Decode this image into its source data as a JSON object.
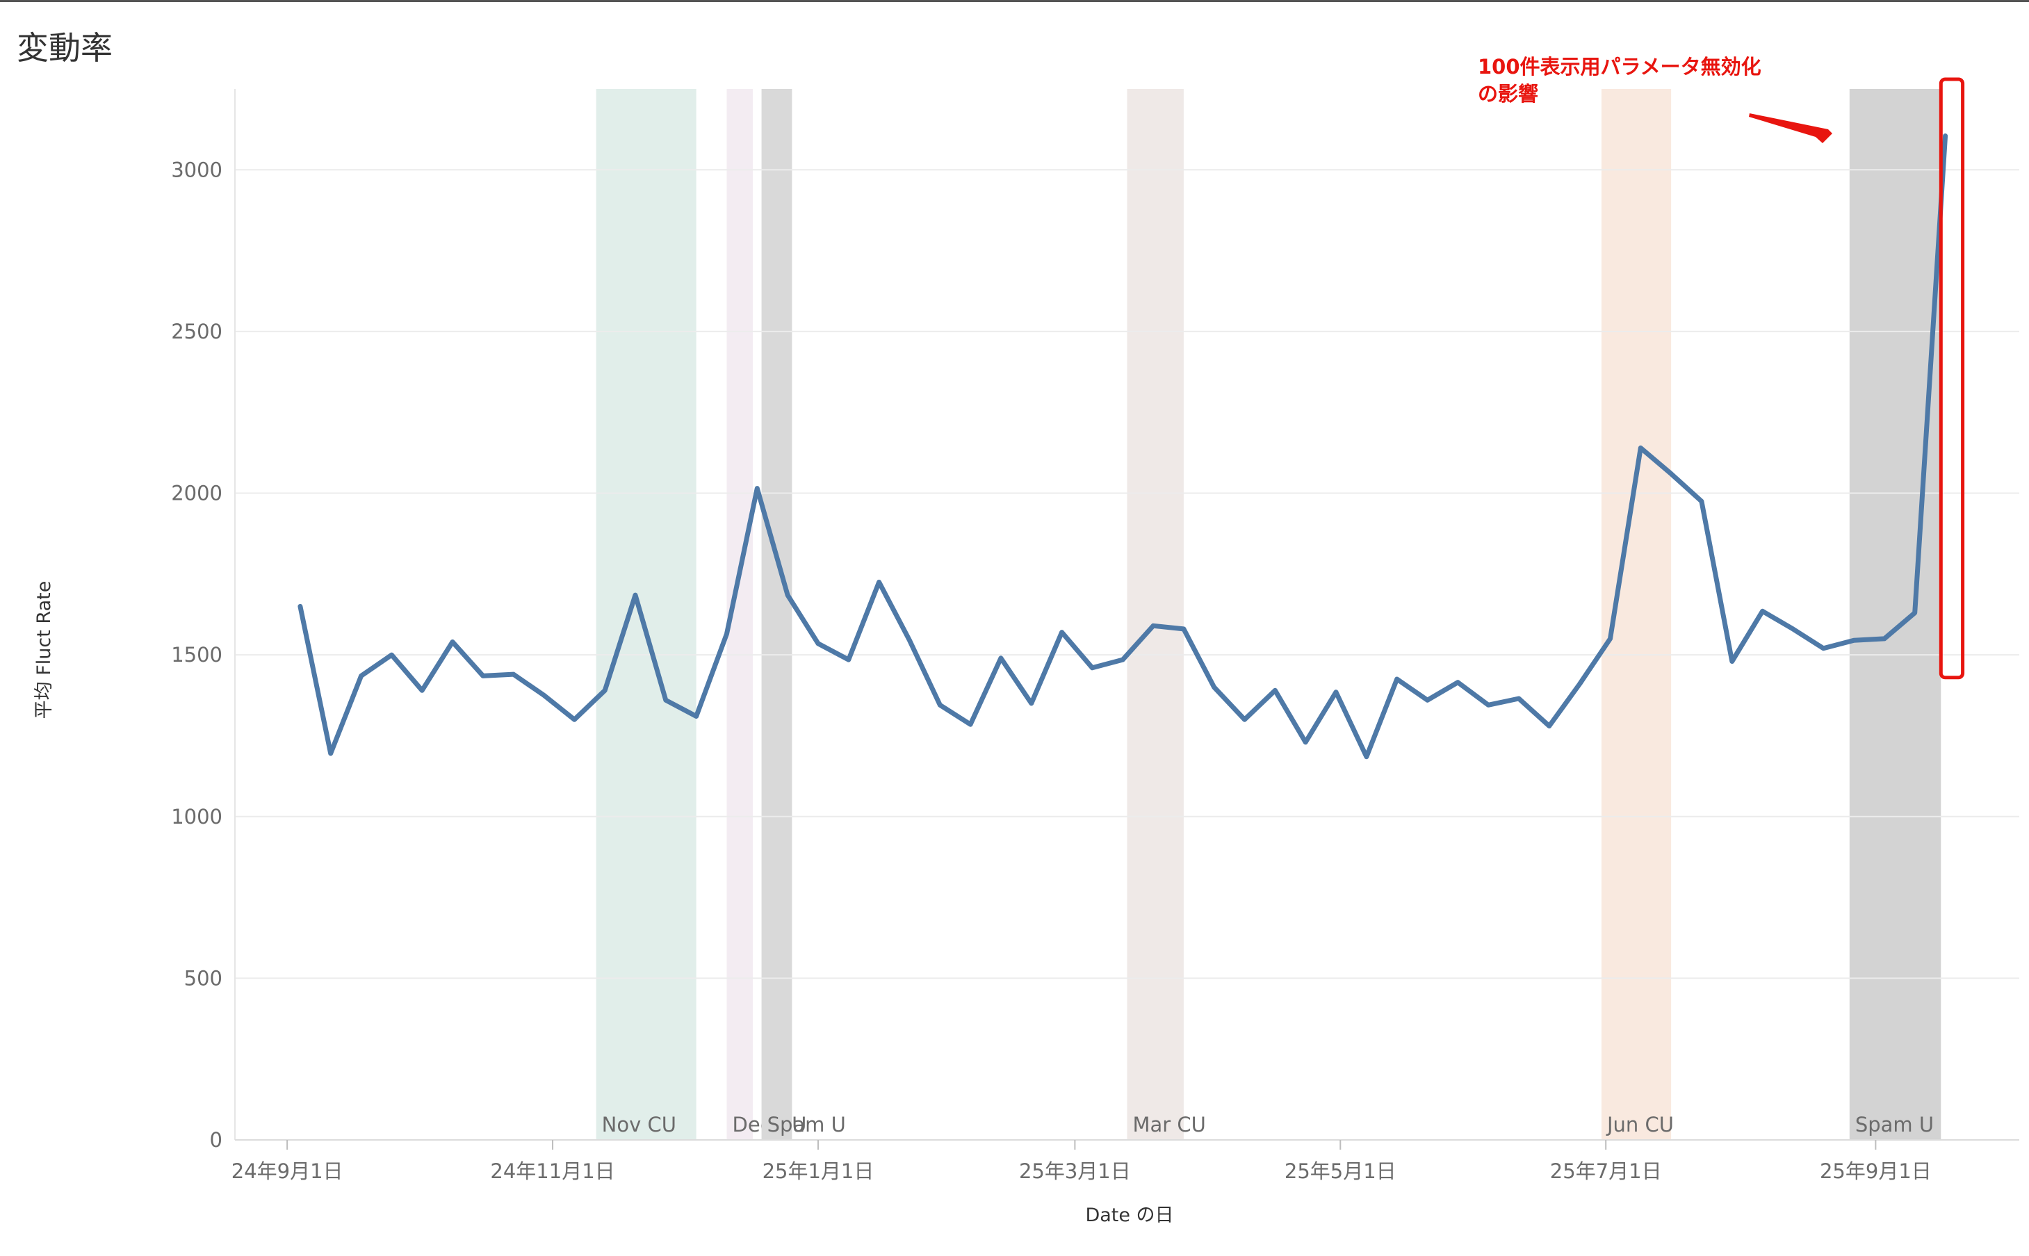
{
  "chart_data": {
    "type": "line",
    "title": "変動率",
    "xlabel": "Date の日",
    "ylabel": "平均 Fluct Rate",
    "ylim": [
      0,
      3250
    ],
    "yticks": [
      0,
      500,
      1000,
      1500,
      2000,
      2500,
      3000
    ],
    "ytick_labels": [
      "0",
      "500",
      "1000",
      "1500",
      "2000",
      "2500",
      "3000"
    ],
    "xlim": [
      "2024-08-20",
      "2025-10-04"
    ],
    "xticks": [
      {
        "date": "2024-09-01",
        "label": "24年9月1日"
      },
      {
        "date": "2024-11-01",
        "label": "24年11月1日"
      },
      {
        "date": "2025-01-01",
        "label": "25年1月1日"
      },
      {
        "date": "2025-03-01",
        "label": "25年3月1日"
      },
      {
        "date": "2025-05-01",
        "label": "25年5月1日"
      },
      {
        "date": "2025-07-01",
        "label": "25年7月1日"
      },
      {
        "date": "2025-09-01",
        "label": "25年9月1日"
      }
    ],
    "grid": true,
    "line_color": "#4e79a7",
    "bands": [
      {
        "label": "Nov CU",
        "start": "2024-11-11",
        "end": "2024-12-04",
        "color": "#e1eeea"
      },
      {
        "label": "Dec CU",
        "start": "2024-12-11",
        "end": "2024-12-17",
        "color": "#f3ecf2"
      },
      {
        "label": "Spam U",
        "start": "2024-12-19",
        "end": "2024-12-26",
        "color": "#d9d9d9"
      },
      {
        "label": "Mar CU",
        "start": "2025-03-13",
        "end": "2025-03-26",
        "color": "#efe9e7"
      },
      {
        "label": "Jun CU",
        "start": "2025-06-30",
        "end": "2025-07-16",
        "color": "#f9e9df"
      },
      {
        "label": "Spam U",
        "start": "2025-08-26",
        "end": "2025-09-16",
        "color": "#d3d3d3"
      }
    ],
    "series": [
      {
        "x": [
          "2024-09-04",
          "2024-09-11",
          "2024-09-18",
          "2024-09-25",
          "2024-10-02",
          "2024-10-09",
          "2024-10-16",
          "2024-10-23",
          "2024-10-30",
          "2024-11-06",
          "2024-11-13",
          "2024-11-20",
          "2024-11-27",
          "2024-12-04",
          "2024-12-11",
          "2024-12-18",
          "2024-12-25",
          "2025-01-01",
          "2025-01-08",
          "2025-01-15",
          "2025-01-22",
          "2025-01-29",
          "2025-02-05",
          "2025-02-12",
          "2025-02-19",
          "2025-02-26",
          "2025-03-05",
          "2025-03-12",
          "2025-03-19",
          "2025-03-26",
          "2025-04-02",
          "2025-04-09",
          "2025-04-16",
          "2025-04-23",
          "2025-04-30",
          "2025-05-07",
          "2025-05-14",
          "2025-05-21",
          "2025-05-28",
          "2025-06-04",
          "2025-06-11",
          "2025-06-18",
          "2025-06-25",
          "2025-07-02",
          "2025-07-09",
          "2025-07-16",
          "2025-07-23",
          "2025-07-30",
          "2025-08-06",
          "2025-08-13",
          "2025-08-20",
          "2025-08-27",
          "2025-09-03",
          "2025-09-10",
          "2025-09-17"
        ],
        "values": [
          1650,
          1195,
          1435,
          1500,
          1390,
          1540,
          1435,
          1440,
          1375,
          1300,
          1390,
          1685,
          1360,
          1310,
          1565,
          2015,
          1685,
          1535,
          1485,
          1725,
          1545,
          1345,
          1285,
          1490,
          1350,
          1570,
          1460,
          1485,
          1590,
          1580,
          1400,
          1300,
          1390,
          1230,
          1385,
          1185,
          1425,
          1360,
          1415,
          1345,
          1365,
          1280,
          1410,
          1550,
          2140,
          2060,
          1975,
          1480,
          1635,
          1580,
          1520,
          1545,
          1550,
          1630,
          3105
        ]
      }
    ],
    "annotation": {
      "lines": [
        "100件表示用パラメータ無効化",
        "の影響"
      ],
      "color": "#e8150f",
      "highlight_x": [
        "2025-09-16",
        "2025-09-21"
      ],
      "highlight_y": [
        1430,
        3280
      ]
    }
  }
}
